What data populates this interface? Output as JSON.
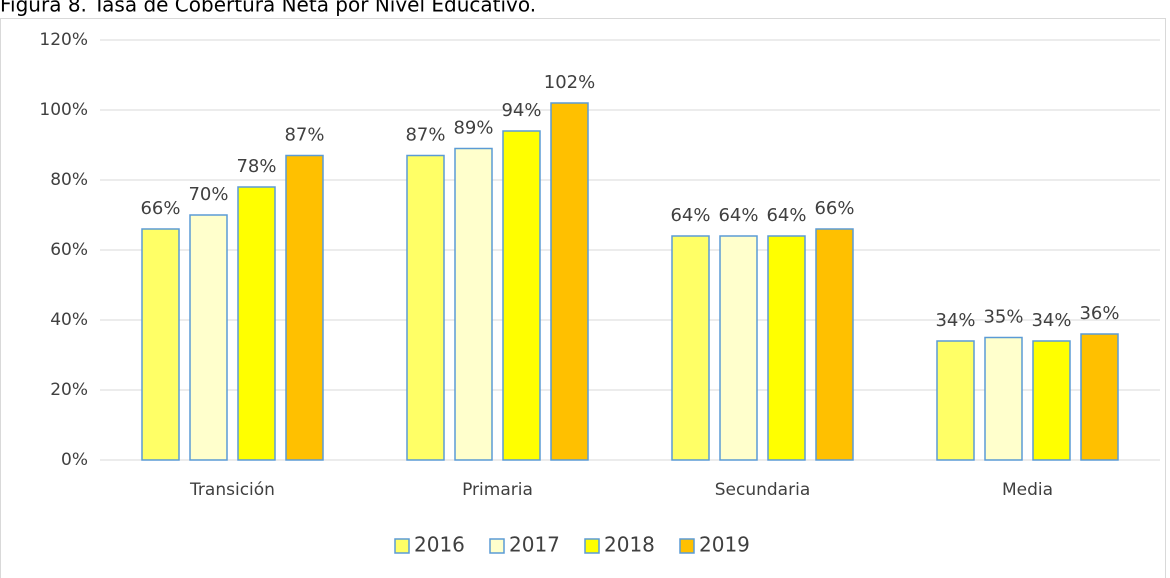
{
  "chart_data": {
    "type": "bar",
    "title": "Figura 8. Tasa de Cobertura Neta por Nivel Educativo.",
    "categories": [
      "Transición",
      "Primaria",
      "Secundaria",
      "Media"
    ],
    "series": [
      {
        "name": "2016",
        "color": "#ffff66",
        "values": [
          66,
          87,
          64,
          34
        ],
        "value_labels": [
          "66%",
          "87%",
          "64%",
          "34%"
        ]
      },
      {
        "name": "2017",
        "color": "#ffffcc",
        "values": [
          70,
          89,
          64,
          35
        ],
        "value_labels": [
          "70%",
          "89%",
          "64%",
          "35%"
        ]
      },
      {
        "name": "2018",
        "color": "#ffff00",
        "values": [
          78,
          94,
          64,
          34
        ],
        "value_labels": [
          "78%",
          "94%",
          "64%",
          "34%"
        ]
      },
      {
        "name": "2019",
        "color": "#ffc000",
        "values": [
          87,
          102,
          66,
          36
        ],
        "value_labels": [
          "87%",
          "102%",
          "66%",
          "36%"
        ]
      }
    ],
    "ylim": [
      0,
      120
    ],
    "yticks": [
      {
        "value": 0,
        "label": "0%"
      },
      {
        "value": 20,
        "label": "20%"
      },
      {
        "value": 40,
        "label": "40%"
      },
      {
        "value": 60,
        "label": "60%"
      },
      {
        "value": 80,
        "label": "80%"
      },
      {
        "value": 100,
        "label": "100%"
      },
      {
        "value": 120,
        "label": "120%"
      }
    ],
    "grid": true,
    "legend": "bottom"
  }
}
